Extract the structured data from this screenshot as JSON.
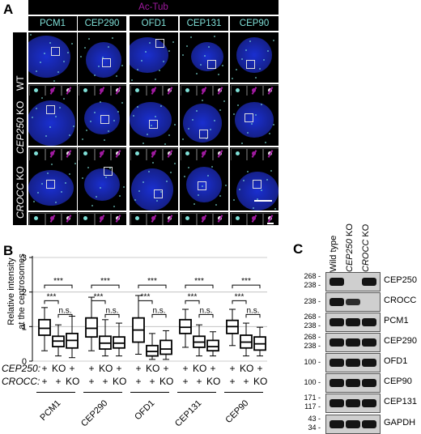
{
  "panelA": {
    "letter": "A",
    "top_label": "Ac-Tub",
    "columns": [
      "PCM1",
      "CEP290",
      "OFD1",
      "CEP131",
      "CEP90"
    ],
    "rows": [
      {
        "gene": "",
        "suffix": "WT"
      },
      {
        "gene": "CEP250",
        "suffix": " KO"
      },
      {
        "gene": "CROCC",
        "suffix": " KO"
      }
    ],
    "colors": {
      "accent": "#a01aa0",
      "marker": "#7fe0d8",
      "nucleus": "#1a2fd0"
    }
  },
  "panelB": {
    "letter": "B",
    "row_labels": {
      "cep250": "CEP250:",
      "crocc": "CROCC:"
    },
    "markers": {
      "top": [
        "+",
        "KO",
        "+"
      ],
      "bottom": [
        "+",
        "+",
        "KO"
      ]
    },
    "sig": {
      "strong": "***",
      "ns": "n.s."
    },
    "chart_data": {
      "type": "box",
      "ylabel": "Relative intensity\nat the centrosomes",
      "ylim": [
        0,
        3
      ],
      "yticks": [
        0,
        1,
        2,
        3
      ],
      "grid": true,
      "groups": [
        {
          "name": "PCM1",
          "boxes": [
            {
              "min": 0.3,
              "q1": 0.75,
              "median": 0.95,
              "q3": 1.2,
              "max": 1.55
            },
            {
              "min": 0.15,
              "q1": 0.42,
              "median": 0.58,
              "q3": 0.72,
              "max": 1.05
            },
            {
              "min": 0.1,
              "q1": 0.38,
              "median": 0.6,
              "q3": 0.8,
              "max": 1.3
            }
          ]
        },
        {
          "name": "CEP290",
          "boxes": [
            {
              "min": 0.3,
              "q1": 0.7,
              "median": 0.95,
              "q3": 1.25,
              "max": 1.85
            },
            {
              "min": 0.15,
              "q1": 0.35,
              "median": 0.52,
              "q3": 0.72,
              "max": 1.2
            },
            {
              "min": 0.15,
              "q1": 0.38,
              "median": 0.52,
              "q3": 0.7,
              "max": 1.1
            }
          ]
        },
        {
          "name": "OFD1",
          "boxes": [
            {
              "min": 0.2,
              "q1": 0.55,
              "median": 0.9,
              "q3": 1.25,
              "max": 1.9
            },
            {
              "min": 0.05,
              "q1": 0.15,
              "median": 0.28,
              "q3": 0.45,
              "max": 0.8
            },
            {
              "min": 0.05,
              "q1": 0.2,
              "median": 0.35,
              "q3": 0.6,
              "max": 0.88
            }
          ]
        },
        {
          "name": "CEP131",
          "boxes": [
            {
              "min": 0.4,
              "q1": 0.8,
              "median": 0.98,
              "q3": 1.2,
              "max": 1.5
            },
            {
              "min": 0.15,
              "q1": 0.4,
              "median": 0.55,
              "q3": 0.72,
              "max": 1.05
            },
            {
              "min": 0.15,
              "q1": 0.3,
              "median": 0.42,
              "q3": 0.6,
              "max": 0.85
            }
          ]
        },
        {
          "name": "CEP90",
          "boxes": [
            {
              "min": 0.45,
              "q1": 0.8,
              "median": 1.0,
              "q3": 1.18,
              "max": 1.5
            },
            {
              "min": 0.15,
              "q1": 0.38,
              "median": 0.55,
              "q3": 0.75,
              "max": 1.1
            },
            {
              "min": 0.15,
              "q1": 0.32,
              "median": 0.5,
              "q3": 0.7,
              "max": 0.98
            }
          ]
        }
      ]
    }
  },
  "panelC": {
    "letter": "C",
    "lanes": [
      {
        "text": "Wild type",
        "italic": false
      },
      {
        "text": "CEP250",
        "suffix": " KO",
        "italic": true
      },
      {
        "text": "CROCC",
        "suffix": " KO",
        "italic": true
      }
    ],
    "blots": [
      {
        "protein": "CEP250",
        "mw": [
          "268",
          "238"
        ],
        "bands": [
          1,
          0,
          1
        ]
      },
      {
        "protein": "CROCC",
        "mw": [
          "238"
        ],
        "bands": [
          1,
          0.7,
          0
        ]
      },
      {
        "protein": "PCM1",
        "mw": [
          "268",
          "238"
        ],
        "bands": [
          1,
          1,
          1
        ]
      },
      {
        "protein": "CEP290",
        "mw": [
          "268",
          "238"
        ],
        "bands": [
          1,
          1,
          1
        ]
      },
      {
        "protein": "OFD1",
        "mw": [
          "100"
        ],
        "bands": [
          1,
          1,
          1
        ]
      },
      {
        "protein": "CEP90",
        "mw": [
          "100"
        ],
        "bands": [
          1,
          1,
          1
        ]
      },
      {
        "protein": "CEP131",
        "mw": [
          "171",
          "117"
        ],
        "bands": [
          1,
          1,
          1
        ]
      },
      {
        "protein": "GAPDH",
        "mw": [
          "43",
          "34"
        ],
        "bands": [
          1,
          1,
          1
        ]
      }
    ]
  }
}
